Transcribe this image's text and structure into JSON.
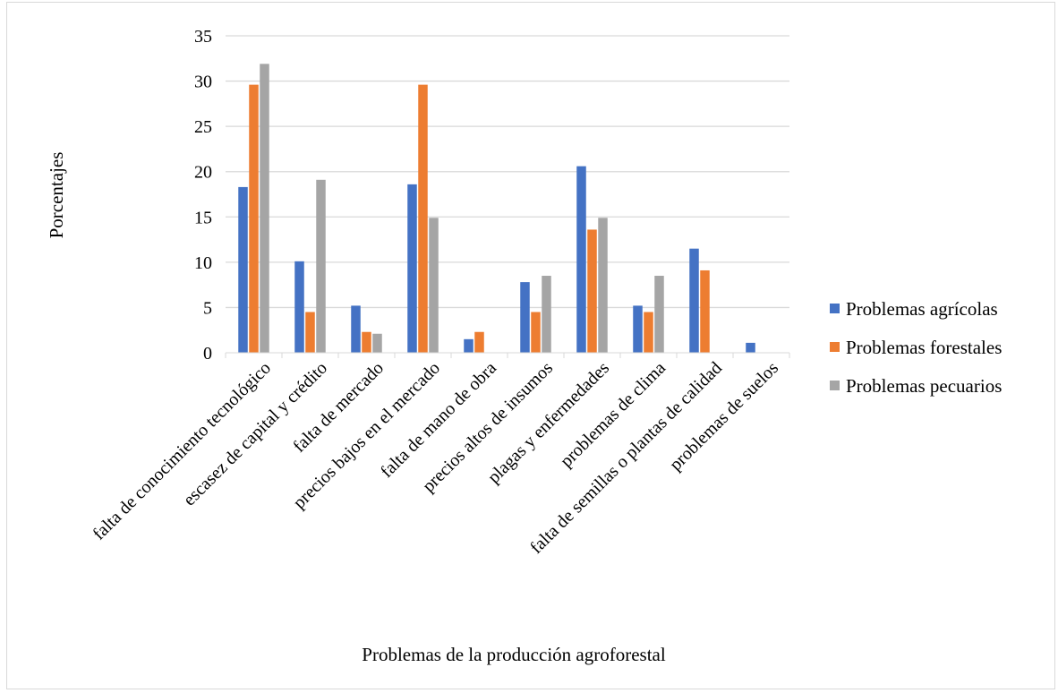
{
  "chart_data": {
    "type": "bar",
    "title": "",
    "xlabel": "Problemas de la producción agroforestal",
    "ylabel": "Porcentajes",
    "ylim": [
      0,
      35
    ],
    "yticks": [
      0,
      5,
      10,
      15,
      20,
      25,
      30,
      35
    ],
    "grid": true,
    "legend_position": "right",
    "categories": [
      "falta de conocimiento tecnológico",
      "escasez de capital y crédito",
      "falta de mercado",
      "precios bajos en el mercado",
      "falta de mano de obra",
      "precios altos de insumos",
      "plagas y enfermedades",
      "problemas de clima",
      "falta de semillas o plantas de calidad",
      "problemas de suelos"
    ],
    "series": [
      {
        "name": "Problemas agrícolas",
        "color": "#4472c4",
        "values": [
          18.3,
          10.1,
          5.2,
          18.6,
          1.5,
          7.8,
          20.6,
          5.2,
          11.5,
          1.1
        ]
      },
      {
        "name": "Problemas forestales",
        "color": "#ed7d31",
        "values": [
          29.6,
          4.5,
          2.3,
          29.6,
          2.3,
          4.5,
          13.6,
          4.5,
          9.1,
          0
        ]
      },
      {
        "name": "Problemas pecuarios",
        "color": "#a5a5a5",
        "values": [
          31.9,
          19.1,
          2.1,
          14.9,
          0,
          8.5,
          14.9,
          8.5,
          0,
          0
        ]
      }
    ]
  }
}
